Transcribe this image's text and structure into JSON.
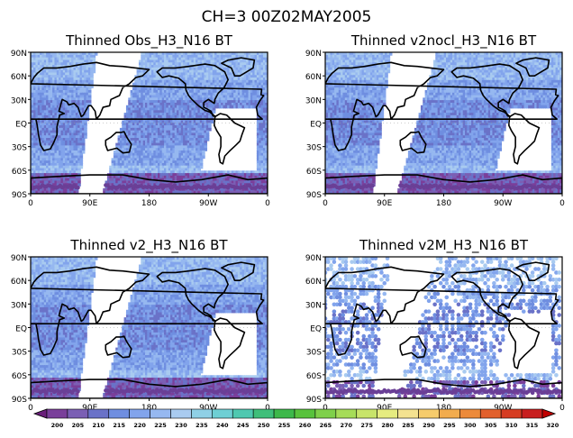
{
  "figure_title": "CH=3   00Z02MAY2005",
  "panels": [
    {
      "title": "Thinned Obs_H3_N16 BT",
      "data_density": "dense"
    },
    {
      "title": "Thinned v2nocl_H3_N16 BT",
      "data_density": "dense"
    },
    {
      "title": "Thinned v2_H3_N16 BT",
      "data_density": "dense"
    },
    {
      "title": "Thinned v2M_H3_N16 BT",
      "data_density": "sparse"
    }
  ],
  "lat_labels": [
    "90N",
    "60N",
    "30N",
    "EQ",
    "30S",
    "60S",
    "90S"
  ],
  "lon_labels": [
    "0",
    "90E",
    "180",
    "90W",
    "0"
  ],
  "colorbar": {
    "labels": [
      "200",
      "205",
      "210",
      "215",
      "220",
      "225",
      "230",
      "235",
      "240",
      "245",
      "250",
      "255",
      "260",
      "265",
      "270",
      "275",
      "280",
      "285",
      "290",
      "295",
      "300",
      "305",
      "310",
      "315",
      "320"
    ],
    "colors": [
      "#6a1f7a",
      "#7a3f9a",
      "#7b5fb4",
      "#6a72c8",
      "#6f8ee0",
      "#82a4ec",
      "#96b8f0",
      "#a9cbf0",
      "#8fd0e6",
      "#6ecfd4",
      "#4fc8b0",
      "#3fbf7a",
      "#3db84a",
      "#58c23c",
      "#7fd04a",
      "#a6dc58",
      "#c8e46a",
      "#e6ec80",
      "#f4e290",
      "#f6cc6c",
      "#f2ac4e",
      "#ec8a3a",
      "#e2602c",
      "#d63c22",
      "#c81e1e",
      "#c00000"
    ]
  }
}
